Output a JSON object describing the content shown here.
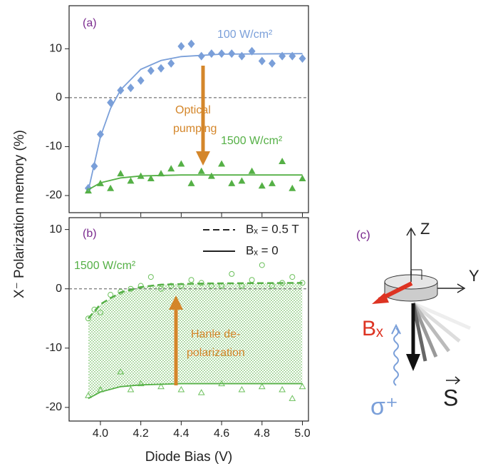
{
  "chart_data": [
    {
      "type": "scatter",
      "ylabel": "X⁻ Polarization memory (%)",
      "xlim": [
        3.845,
        5.03
      ],
      "ylim": [
        -23.5,
        18.8
      ],
      "xticks": [
        4.0,
        4.2,
        4.4,
        4.6,
        4.8,
        5.0
      ],
      "xtick_labels": false,
      "yticks": [
        -20,
        -10,
        0,
        10
      ],
      "hline": 0,
      "annotations": [
        {
          "text": "(a)",
          "color": "#7b2c8f"
        },
        {
          "text": "100 W/cm²",
          "color": "#7a9fd9"
        },
        {
          "text": "Optical",
          "color": "#d4862a"
        },
        {
          "text": "pumping",
          "color": "#d4862a"
        },
        {
          "text": "1500 W/cm²",
          "color": "#55b046"
        }
      ],
      "arrow_color": "#d4862a",
      "series": [
        {
          "kind": "points",
          "marker": "diamond",
          "color": "#7a9fd9",
          "x": [
            3.94,
            3.97,
            4.0,
            4.05,
            4.1,
            4.15,
            4.2,
            4.25,
            4.3,
            4.35,
            4.4,
            4.45,
            4.5,
            4.55,
            4.6,
            4.65,
            4.7,
            4.75,
            4.8,
            4.85,
            4.9,
            4.95,
            5.0
          ],
          "values": [
            -18.5,
            -14,
            -7.5,
            -1,
            1.5,
            2,
            3.5,
            5.5,
            6,
            7,
            10.5,
            11,
            8.5,
            9,
            9,
            9,
            8.5,
            9.5,
            7.5,
            7,
            8.5,
            8.5,
            8
          ]
        },
        {
          "kind": "points",
          "marker": "triangle",
          "color": "#55b046",
          "x": [
            3.94,
            4.0,
            4.05,
            4.1,
            4.15,
            4.2,
            4.25,
            4.3,
            4.35,
            4.4,
            4.45,
            4.5,
            4.55,
            4.6,
            4.65,
            4.7,
            4.75,
            4.8,
            4.85,
            4.9,
            4.95,
            5.0
          ],
          "values": [
            -19,
            -17.5,
            -18.5,
            -15.5,
            -17,
            -16,
            -16.5,
            -15.5,
            -14.5,
            -13.5,
            -17.5,
            -15,
            -16,
            -13.5,
            -17.5,
            -17,
            -15,
            -18,
            -17.5,
            -13,
            -18.5,
            -16.5
          ]
        },
        {
          "kind": "line",
          "style": "solid",
          "color": "#7a9fd9",
          "x": [
            3.94,
            4.0,
            4.05,
            4.1,
            4.2,
            4.3,
            4.4,
            4.6,
            5.0
          ],
          "values": [
            -19,
            -8,
            -2.2,
            1.6,
            5.8,
            7.6,
            8.4,
            8.9,
            9
          ]
        },
        {
          "kind": "line",
          "style": "solid",
          "color": "#55b046",
          "x": [
            3.94,
            4.0,
            4.1,
            4.2,
            4.4,
            5.0
          ],
          "values": [
            -18.8,
            -17.4,
            -16.4,
            -16,
            -15.8,
            -15.8
          ]
        }
      ]
    },
    {
      "type": "scatter",
      "xlabel": "Diode Bias (V)",
      "xlim": [
        3.845,
        5.03
      ],
      "ylim": [
        -22.3,
        12
      ],
      "xticks": [
        {
          "value": 4,
          "label": "4.0"
        },
        {
          "value": 4.2,
          "label": "4.2"
        },
        {
          "value": 4.4,
          "label": "4.4"
        },
        {
          "value": 4.6,
          "label": "4.6"
        },
        {
          "value": 4.8,
          "label": "4.8"
        },
        {
          "value": 5,
          "label": "5.0"
        }
      ],
      "yticks": [
        -20,
        -10,
        0,
        10
      ],
      "hline": 0,
      "fill_between": true,
      "annotations": [
        {
          "text": "(b)",
          "color": "#7b2c8f"
        },
        {
          "text": "1500 W/cm²",
          "color": "#55b046"
        },
        {
          "text": "Hanle de-",
          "color": "#d4862a"
        },
        {
          "text": "polarization",
          "color": "#d4862a"
        }
      ],
      "arrow_color": "#d4862a",
      "series": [
        {
          "kind": "points",
          "marker": "circle-open",
          "color": "#6cc05c",
          "x": [
            3.94,
            3.97,
            4.0,
            4.05,
            4.1,
            4.15,
            4.2,
            4.25,
            4.3,
            4.35,
            4.4,
            4.45,
            4.5,
            4.55,
            4.6,
            4.65,
            4.7,
            4.75,
            4.8,
            4.85,
            4.9,
            4.95,
            5.0
          ],
          "values": [
            -5,
            -3.5,
            -4,
            -1,
            -0.5,
            0,
            0.5,
            2,
            0,
            0.5,
            0.5,
            1.5,
            1,
            0.5,
            0.5,
            2.5,
            0.5,
            1.5,
            4,
            0.5,
            1,
            2,
            1
          ]
        },
        {
          "kind": "points",
          "marker": "triangle-open",
          "color": "#6cc05c",
          "x": [
            3.94,
            4.0,
            4.1,
            4.15,
            4.2,
            4.3,
            4.4,
            4.5,
            4.6,
            4.7,
            4.8,
            4.9,
            4.95,
            5.0
          ],
          "values": [
            -18,
            -17,
            -14,
            -17,
            -16,
            -16.5,
            -17,
            -17.5,
            -16,
            -17,
            -16.5,
            -17,
            -18.5,
            -16.5
          ]
        },
        {
          "kind": "line",
          "style": "dashed",
          "color": "#55b046",
          "name": "Bₓ = 0.5 T",
          "x": [
            3.94,
            4.0,
            4.1,
            4.2,
            4.3,
            4.5,
            5.0
          ],
          "values": [
            -5,
            -2.6,
            -0.6,
            0.3,
            0.7,
            0.9,
            1
          ]
        },
        {
          "kind": "line",
          "style": "solid",
          "color": "#55b046",
          "name": "Bₓ = 0",
          "x": [
            3.94,
            4.0,
            4.1,
            4.2,
            4.4,
            5.0
          ],
          "values": [
            -18.5,
            -17.4,
            -16.5,
            -16.2,
            -16,
            -16
          ]
        }
      ]
    }
  ],
  "diagram": {
    "label": "(c)",
    "z": "Z",
    "y": "Y",
    "b": "Bₓ",
    "sigma": "σ⁺",
    "s": "S"
  }
}
